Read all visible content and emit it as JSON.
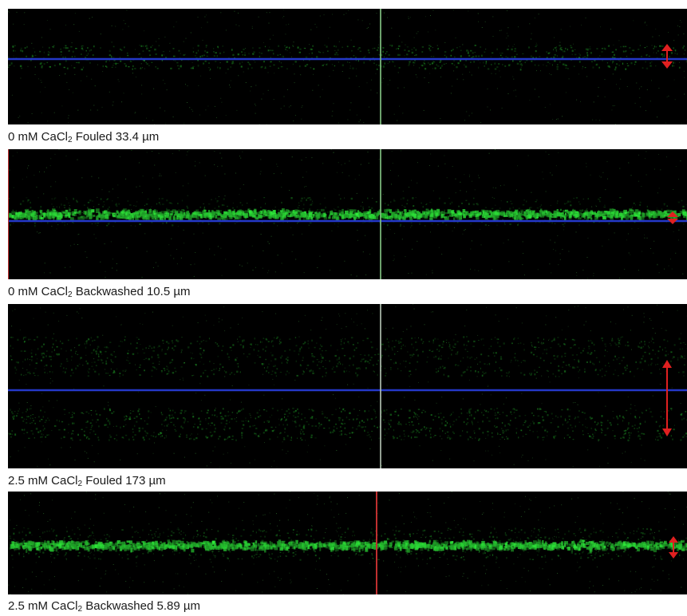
{
  "panels": [
    {
      "prefix": "0 mM CaCl",
      "sub": "2",
      "suffix": " Fouled 33.4 µm"
    },
    {
      "prefix": "0 mM CaCl",
      "sub": "2",
      "suffix": " Backwashed 10.5 µm"
    },
    {
      "prefix": "2.5 mM CaCl",
      "sub": "2",
      "suffix": " Fouled 173 µm"
    },
    {
      "prefix": "2.5 mM CaCl",
      "sub": "2",
      "suffix": " Backwashed 5.89 µm"
    }
  ],
  "colors": {
    "background": "#000000",
    "green_signal": "#2fd63a",
    "blue_line": "#2438c8",
    "arrow": "#e02020",
    "cursor_green": "#7fbf7f",
    "cursor_red": "#c03030"
  }
}
